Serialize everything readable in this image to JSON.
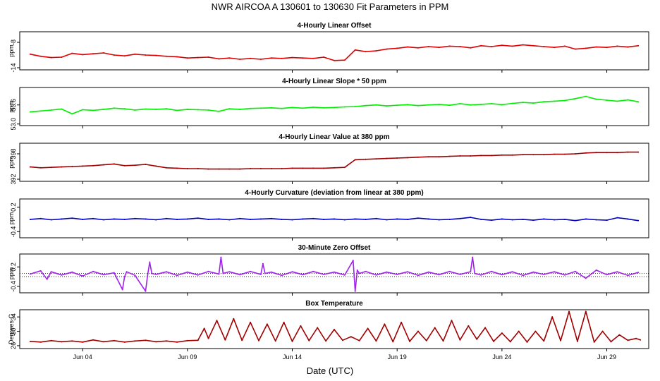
{
  "title": "NWR   AIRCOA A   130601 to 130630   Fit Parameters in PPM",
  "x_axis": {
    "label": "Date (UTC)",
    "ticks": [
      "Jun 04",
      "Jun 09",
      "Jun 14",
      "Jun 19",
      "Jun 24",
      "Jun 29"
    ],
    "tick_days": [
      4,
      9,
      14,
      19,
      24,
      29
    ],
    "range_days": [
      1,
      31
    ]
  },
  "colors": {
    "offset": "#e00000",
    "slope": "#00ee00",
    "value": "#a00000",
    "curvature": "#0000c0",
    "zero": "#a020f0",
    "temperature": "#a00000"
  },
  "chart_data": [
    {
      "type": "line",
      "title": "4-Hourly Linear Offset",
      "ylabel": "ppm",
      "yticks": [
        "-8",
        "-14"
      ],
      "ytick_values": [
        -8,
        -14
      ],
      "ylim": [
        -14.5,
        -5.5
      ],
      "color_key": "offset",
      "x": [
        1.5,
        2,
        2.5,
        3,
        3.5,
        4,
        4.5,
        5,
        5.5,
        6,
        6.5,
        7,
        7.5,
        8,
        8.5,
        9,
        9.5,
        10,
        10.5,
        11,
        11.5,
        12,
        12.5,
        13,
        13.5,
        14,
        14.5,
        15,
        15.5,
        16,
        16.5,
        17,
        17.5,
        18,
        18.5,
        19,
        19.5,
        20,
        20.5,
        21,
        21.5,
        22,
        22.5,
        23,
        23.5,
        24,
        24.5,
        25,
        25.5,
        26,
        26.5,
        27,
        27.5,
        28,
        28.5,
        29,
        29.5,
        30,
        30.5
      ],
      "y": [
        -10.8,
        -11.3,
        -11.6,
        -11.5,
        -10.6,
        -10.9,
        -10.7,
        -10.5,
        -11.0,
        -11.2,
        -10.8,
        -11.0,
        -11.1,
        -11.3,
        -11.4,
        -11.7,
        -11.6,
        -11.5,
        -11.9,
        -11.7,
        -12.0,
        -11.8,
        -12.0,
        -11.7,
        -11.8,
        -11.6,
        -11.7,
        -11.8,
        -11.5,
        -12.3,
        -12.2,
        -9.8,
        -10.2,
        -10.0,
        -9.6,
        -9.4,
        -9.1,
        -9.3,
        -9.0,
        -9.2,
        -8.9,
        -9.0,
        -9.3,
        -8.8,
        -9.0,
        -8.7,
        -8.9,
        -8.6,
        -8.8,
        -9.0,
        -9.2,
        -8.9,
        -9.6,
        -9.4,
        -9.1,
        -9.2,
        -8.9,
        -9.1,
        -8.8
      ]
    },
    {
      "type": "line",
      "title": "4-Hourly Linear Slope * 50 ppm",
      "ylabel": "ppm",
      "yticks": [
        "53.6",
        "53.0"
      ],
      "ytick_values": [
        53.6,
        53.0
      ],
      "ylim": [
        52.95,
        54.15
      ],
      "color_key": "slope",
      "x": [
        1.5,
        2,
        2.5,
        3,
        3.5,
        4,
        4.5,
        5,
        5.5,
        6,
        6.5,
        7,
        7.5,
        8,
        8.5,
        9,
        9.5,
        10,
        10.5,
        11,
        11.5,
        12,
        12.5,
        13,
        13.5,
        14,
        14.5,
        15,
        15.5,
        16,
        16.5,
        17,
        17.5,
        18,
        18.5,
        19,
        19.5,
        20,
        20.5,
        21,
        21.5,
        22,
        22.5,
        23,
        23.5,
        24,
        24.5,
        25,
        25.5,
        26,
        26.5,
        27,
        27.5,
        28,
        28.5,
        29,
        29.5,
        30,
        30.5
      ],
      "y": [
        53.38,
        53.41,
        53.44,
        53.47,
        53.32,
        53.45,
        53.43,
        53.46,
        53.5,
        53.48,
        53.44,
        53.47,
        53.46,
        53.48,
        53.43,
        53.46,
        53.45,
        53.44,
        53.4,
        53.48,
        53.46,
        53.49,
        53.5,
        53.51,
        53.49,
        53.52,
        53.5,
        53.53,
        53.51,
        53.52,
        53.54,
        53.55,
        53.58,
        53.6,
        53.57,
        53.59,
        53.61,
        53.58,
        53.6,
        53.62,
        53.59,
        53.64,
        53.6,
        53.62,
        53.64,
        53.61,
        53.65,
        53.68,
        53.66,
        53.7,
        53.72,
        53.74,
        53.8,
        53.87,
        53.78,
        53.75,
        53.72,
        53.76,
        53.7
      ]
    },
    {
      "type": "line",
      "title": "4-Hourly Linear Value at 380 ppm",
      "ylabel": "ppm",
      "yticks": [
        "398",
        "392"
      ],
      "ytick_values": [
        398,
        392
      ],
      "ylim": [
        391.5,
        400.5
      ],
      "color_key": "value",
      "x": [
        1.5,
        2,
        2.5,
        3,
        3.5,
        4,
        4.5,
        5,
        5.5,
        6,
        6.5,
        7,
        7.5,
        8,
        8.5,
        9,
        9.5,
        10,
        10.5,
        11,
        11.5,
        12,
        12.5,
        13,
        13.5,
        14,
        14.5,
        15,
        15.5,
        16,
        16.5,
        17,
        17.5,
        18,
        18.5,
        19,
        19.5,
        20,
        20.5,
        21,
        21.5,
        22,
        22.5,
        23,
        23.5,
        24,
        24.5,
        25,
        25.5,
        26,
        26.5,
        27,
        27.5,
        28,
        28.5,
        29,
        29.5,
        30,
        30.5
      ],
      "y": [
        394.9,
        394.7,
        394.8,
        394.9,
        395.0,
        395.1,
        395.2,
        395.4,
        395.6,
        395.2,
        395.3,
        395.5,
        395.1,
        394.7,
        394.6,
        394.5,
        394.5,
        394.4,
        394.4,
        394.4,
        394.4,
        394.5,
        394.5,
        394.5,
        394.5,
        394.6,
        394.6,
        394.6,
        394.6,
        394.7,
        394.8,
        396.6,
        396.7,
        396.8,
        396.9,
        397.0,
        397.1,
        397.2,
        397.3,
        397.3,
        397.4,
        397.5,
        397.5,
        397.6,
        397.6,
        397.7,
        397.7,
        397.8,
        397.8,
        397.8,
        397.9,
        397.9,
        398.0,
        398.2,
        398.3,
        398.3,
        398.3,
        398.4,
        398.4
      ]
    },
    {
      "type": "line",
      "title": "4-Hourly Curvature (deviation from linear at 380 ppm)",
      "ylabel": "ppm",
      "yticks": [
        "0.2",
        "-0.4"
      ],
      "ytick_values": [
        0.2,
        -0.4
      ],
      "ylim": [
        -0.55,
        0.4
      ],
      "color_key": "curvature",
      "x": [
        1.5,
        2,
        2.5,
        3,
        3.5,
        4,
        4.5,
        5,
        5.5,
        6,
        6.5,
        7,
        7.5,
        8,
        8.5,
        9,
        9.5,
        10,
        10.5,
        11,
        11.5,
        12,
        12.5,
        13,
        13.5,
        14,
        14.5,
        15,
        15.5,
        16,
        16.5,
        17,
        17.5,
        18,
        18.5,
        19,
        19.5,
        20,
        20.5,
        21,
        21.5,
        22,
        22.5,
        23,
        23.5,
        24,
        24.5,
        25,
        25.5,
        26,
        26.5,
        27,
        27.5,
        28,
        28.5,
        29,
        29.5,
        30,
        30.5
      ],
      "y": [
        -0.1,
        -0.08,
        -0.11,
        -0.09,
        -0.07,
        -0.1,
        -0.08,
        -0.11,
        -0.09,
        -0.1,
        -0.08,
        -0.09,
        -0.11,
        -0.08,
        -0.1,
        -0.09,
        -0.07,
        -0.1,
        -0.09,
        -0.11,
        -0.08,
        -0.1,
        -0.09,
        -0.08,
        -0.1,
        -0.11,
        -0.09,
        -0.08,
        -0.1,
        -0.09,
        -0.11,
        -0.09,
        -0.1,
        -0.08,
        -0.11,
        -0.09,
        -0.1,
        -0.07,
        -0.09,
        -0.11,
        -0.1,
        -0.08,
        -0.05,
        -0.1,
        -0.12,
        -0.09,
        -0.11,
        -0.1,
        -0.12,
        -0.09,
        -0.11,
        -0.1,
        -0.13,
        -0.09,
        -0.11,
        -0.12,
        -0.06,
        -0.09,
        -0.13
      ]
    },
    {
      "type": "line",
      "title": "30-Minute Zero Offset",
      "ylabel": "ppm",
      "yticks": [
        "0.2",
        "-0.4"
      ],
      "ytick_values": [
        0.2,
        -0.4
      ],
      "ylim": [
        -0.6,
        0.6
      ],
      "reference_lines": [
        0.0,
        -0.1
      ],
      "color_key": "zero",
      "x": [
        1.5,
        2,
        2.3,
        2.5,
        3,
        3.5,
        4,
        4.5,
        5,
        5.5,
        5.9,
        6.0,
        6.1,
        6.5,
        7.0,
        7.1,
        7.2,
        7.3,
        7.5,
        8,
        8.5,
        9,
        9.5,
        10,
        10.5,
        10.6,
        10.7,
        11,
        11.5,
        12,
        12.5,
        12.6,
        12.7,
        13,
        13.5,
        14,
        14.5,
        15,
        15.5,
        16,
        16.5,
        16.9,
        17.0,
        17.1,
        17.2,
        17.5,
        18,
        18.5,
        19,
        19.5,
        20,
        20.5,
        21,
        21.5,
        22,
        22.5,
        22.6,
        22.7,
        23,
        23.5,
        24,
        24.5,
        25,
        25.5,
        26,
        26.5,
        27,
        27.5,
        28,
        28.5,
        29,
        29.5,
        30,
        30.5
      ],
      "y": [
        -0.02,
        0.08,
        -0.18,
        0.05,
        -0.05,
        0.04,
        -0.08,
        0.06,
        -0.04,
        0.02,
        -0.5,
        -0.1,
        0.05,
        -0.06,
        -0.55,
        -0.05,
        0.35,
        0.0,
        -0.03,
        0.05,
        -0.06,
        0.04,
        -0.05,
        0.06,
        -0.02,
        0.5,
        0.0,
        0.05,
        -0.04,
        0.06,
        -0.03,
        0.3,
        0.0,
        0.04,
        -0.06,
        0.05,
        -0.04,
        0.06,
        -0.03,
        0.04,
        -0.05,
        0.4,
        -0.55,
        0.1,
        0.0,
        0.06,
        -0.05,
        0.04,
        -0.03,
        0.05,
        -0.06,
        0.04,
        -0.04,
        0.06,
        -0.03,
        0.05,
        0.5,
        0.0,
        -0.05,
        0.06,
        -0.04,
        0.05,
        -0.06,
        0.04,
        -0.03,
        0.05,
        -0.05,
        0.06,
        -0.15,
        0.1,
        -0.04,
        0.05,
        -0.06,
        0.03
      ]
    },
    {
      "type": "line",
      "title": "Box Temperature",
      "ylabel": "Degrees C",
      "yticks": [
        "34",
        "30",
        "26"
      ],
      "ytick_values": [
        34,
        30,
        26
      ],
      "ylim": [
        25.2,
        36
      ],
      "color_key": "temperature",
      "x": [
        1.5,
        2,
        2.5,
        3,
        3.5,
        4,
        4.5,
        5,
        5.5,
        6,
        6.5,
        7,
        7.5,
        8,
        8.5,
        9,
        9.5,
        9.8,
        10.0,
        10.4,
        10.8,
        11.2,
        11.6,
        12.0,
        12.4,
        12.8,
        13.2,
        13.6,
        14.0,
        14.4,
        14.8,
        15.2,
        15.6,
        16.0,
        16.4,
        16.8,
        17.2,
        17.6,
        18.0,
        18.4,
        18.8,
        19.2,
        19.6,
        20.0,
        20.4,
        20.8,
        21.2,
        21.6,
        22.0,
        22.4,
        22.8,
        23.2,
        23.6,
        24.0,
        24.4,
        24.8,
        25.2,
        25.6,
        26.0,
        26.4,
        26.8,
        27.2,
        27.6,
        28.0,
        28.4,
        28.8,
        29.2,
        29.6,
        30.0,
        30.4,
        30.6
      ],
      "y": [
        27.2,
        27.0,
        27.4,
        27.1,
        27.3,
        27.0,
        27.6,
        27.1,
        27.4,
        27.0,
        27.3,
        27.5,
        27.1,
        27.3,
        27.0,
        27.4,
        27.5,
        30.8,
        28.0,
        33.0,
        27.6,
        33.5,
        27.5,
        32.5,
        27.4,
        32.0,
        27.3,
        32.5,
        27.2,
        31.5,
        27.4,
        31.0,
        27.3,
        30.5,
        27.5,
        28.5,
        27.4,
        30.8,
        27.3,
        32.0,
        27.1,
        32.5,
        27.2,
        30.0,
        27.4,
        31.0,
        27.3,
        33.0,
        27.6,
        31.5,
        27.8,
        31.0,
        27.2,
        29.5,
        27.1,
        30.0,
        27.0,
        30.0,
        27.3,
        34.0,
        27.4,
        35.5,
        27.2,
        35.5,
        27.0,
        30.0,
        27.1,
        29.0,
        27.5,
        28.0,
        27.6
      ]
    }
  ]
}
